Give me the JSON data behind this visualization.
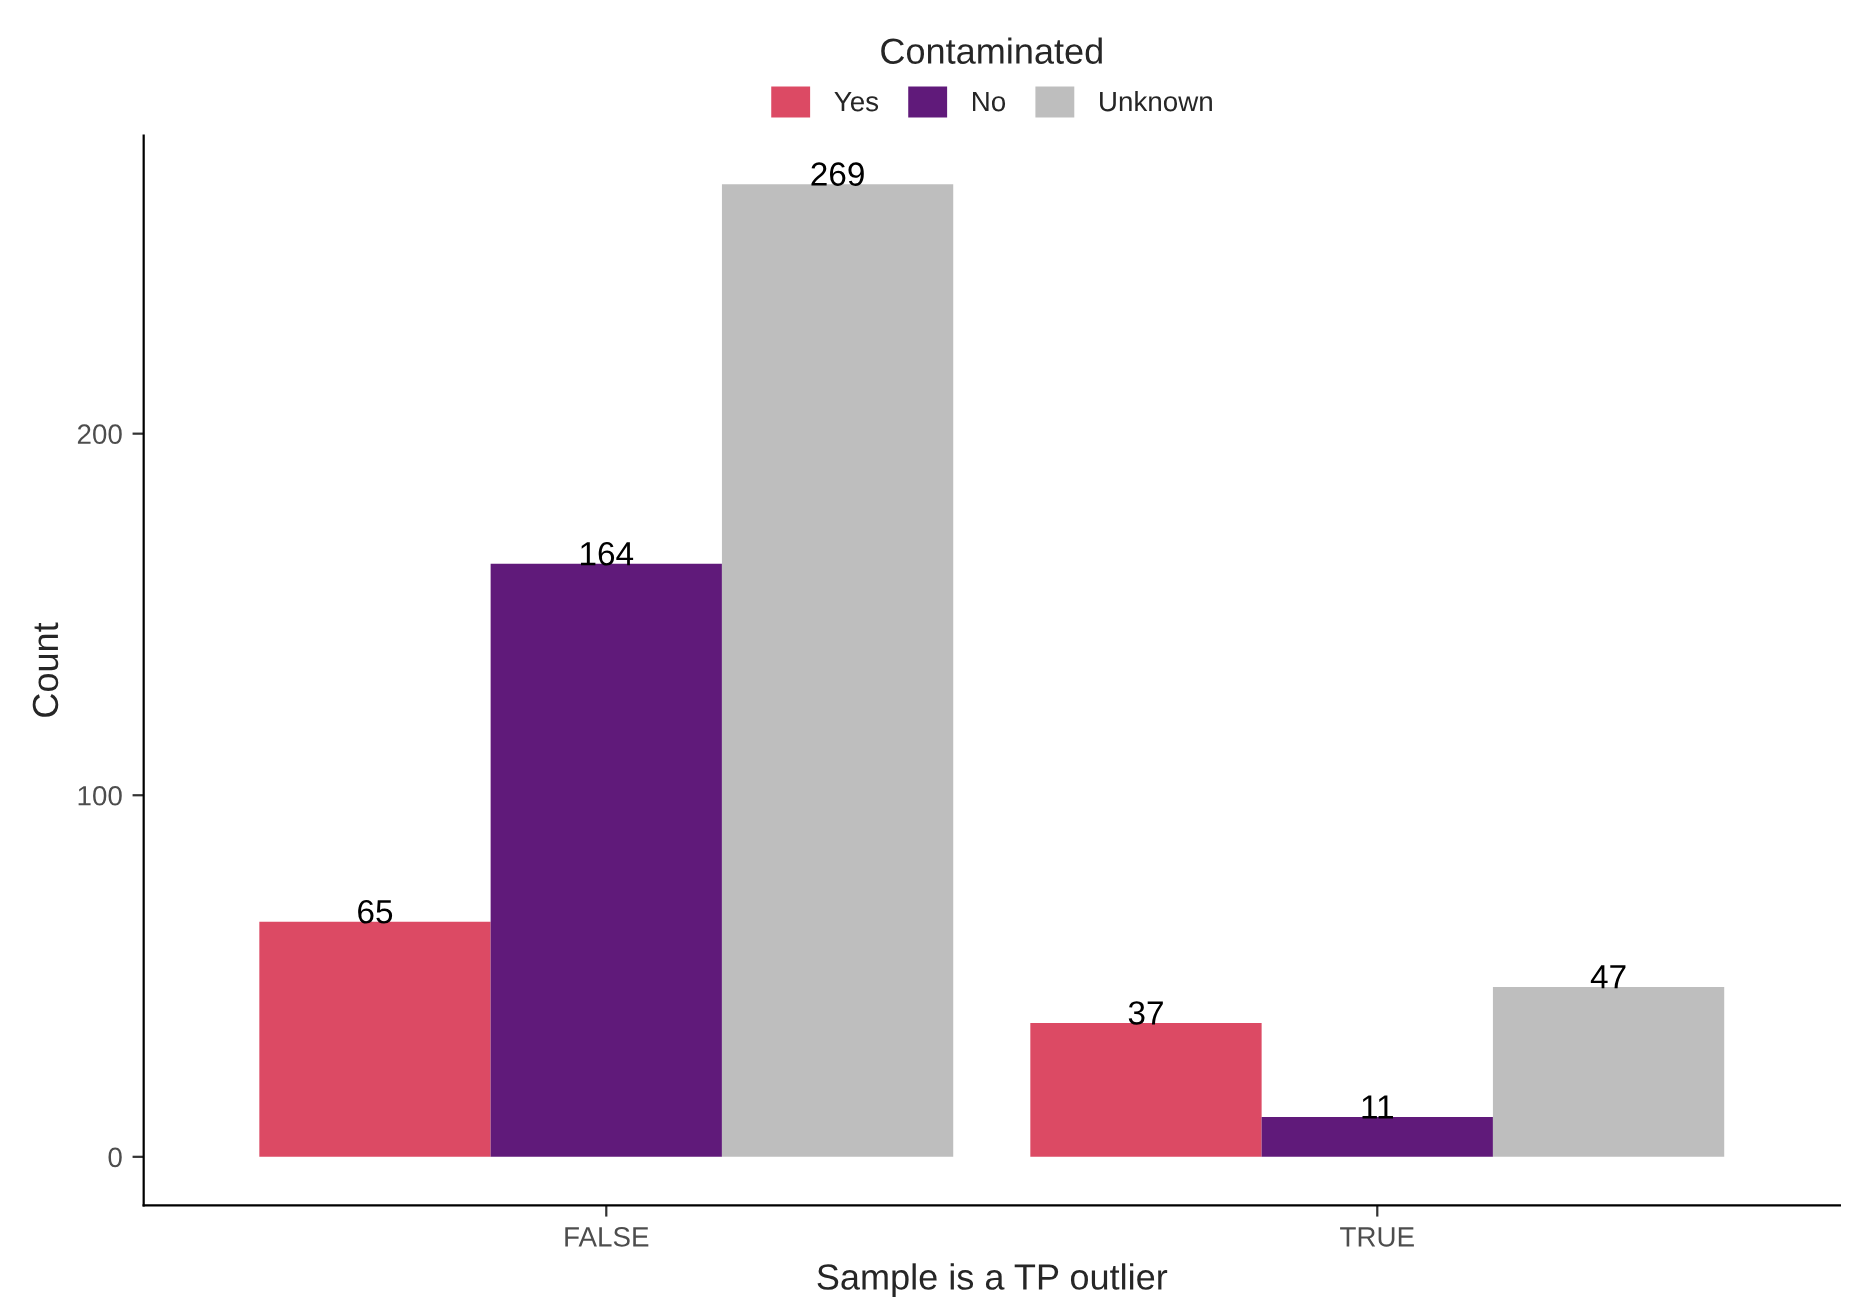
{
  "chart_data": {
    "type": "bar",
    "xlabel": "Sample is a TP outlier",
    "ylabel": "Count",
    "legend_title": "Contaminated",
    "categories": [
      "FALSE",
      "TRUE"
    ],
    "series": [
      {
        "name": "Yes",
        "color": "#dc4a64",
        "values": [
          65,
          37
        ]
      },
      {
        "name": "No",
        "color": "#601a7a",
        "values": [
          164,
          11
        ]
      },
      {
        "name": "Unknown",
        "color": "#bebebe",
        "values": [
          269,
          47
        ]
      }
    ],
    "ylim": [
      -13.45,
      282.45
    ],
    "yticks": [
      0,
      100,
      200
    ],
    "grid": false,
    "legend": "top",
    "data_labels": true
  }
}
